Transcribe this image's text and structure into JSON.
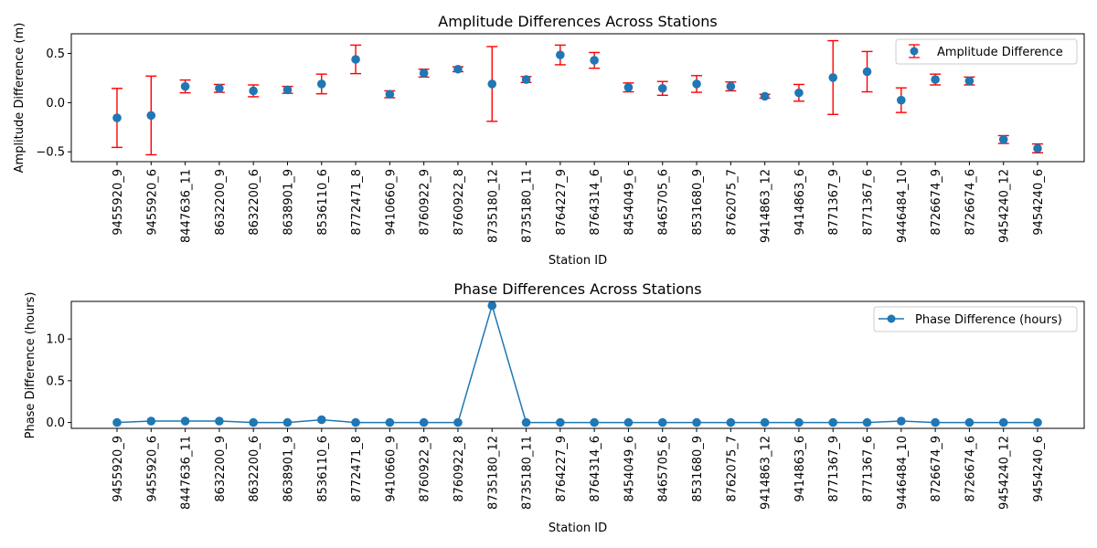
{
  "chart_data": [
    {
      "type": "scatter",
      "title": "Amplitude Differences Across Stations",
      "xlabel": "Station ID",
      "ylabel": "Amplitude Difference (m)",
      "ylim": [
        -0.6,
        0.7
      ],
      "yticks": [
        -0.5,
        0.0,
        0.5
      ],
      "ytick_labels": [
        "−0.5",
        "0.0",
        "0.5"
      ],
      "grid": false,
      "legend": {
        "position": "top-right",
        "label": "Amplitude Difference"
      },
      "categories": [
        "9455920_9",
        "9455920_6",
        "8447636_11",
        "8632200_9",
        "8632200_6",
        "8638901_9",
        "8536110_6",
        "8772471_8",
        "9410660_9",
        "8760922_9",
        "8760922_8",
        "8735180_12",
        "8735180_11",
        "8764227_9",
        "8764314_6",
        "8454049_6",
        "8465705_6",
        "8531680_9",
        "8762075_7",
        "9414863_12",
        "9414863_6",
        "8771367_9",
        "8771367_6",
        "9446484_10",
        "8726674_9",
        "8726674_6",
        "9454240_12",
        "9454240_6"
      ],
      "series": [
        {
          "name": "Amplitude Difference",
          "values": [
            -0.155,
            -0.13,
            0.165,
            0.145,
            0.12,
            0.13,
            0.19,
            0.44,
            0.085,
            0.3,
            0.34,
            0.19,
            0.235,
            0.485,
            0.43,
            0.155,
            0.145,
            0.19,
            0.165,
            0.065,
            0.1,
            0.255,
            0.315,
            0.025,
            0.235,
            0.22,
            -0.375,
            -0.465
          ],
          "error": [
            0.3,
            0.4,
            0.065,
            0.04,
            0.06,
            0.035,
            0.1,
            0.145,
            0.035,
            0.04,
            0.025,
            0.38,
            0.03,
            0.1,
            0.08,
            0.045,
            0.07,
            0.085,
            0.045,
            0.02,
            0.085,
            0.375,
            0.205,
            0.125,
            0.055,
            0.04,
            0.04,
            0.045
          ],
          "marker_color": "#1f77b4",
          "error_color": "#ff0000"
        }
      ]
    },
    {
      "type": "line",
      "title": "Phase Differences Across Stations",
      "xlabel": "Station ID",
      "ylabel": "Phase Difference (hours)",
      "ylim": [
        -0.07,
        1.45
      ],
      "yticks": [
        0.0,
        0.5,
        1.0
      ],
      "ytick_labels": [
        "0.0",
        "0.5",
        "1.0"
      ],
      "grid": false,
      "legend": {
        "position": "top-right",
        "label": "Phase Difference (hours)"
      },
      "categories": [
        "9455920_9",
        "9455920_6",
        "8447636_11",
        "8632200_9",
        "8632200_6",
        "8638901_9",
        "8536110_6",
        "8772471_8",
        "9410660_9",
        "8760922_9",
        "8760922_8",
        "8735180_12",
        "8735180_11",
        "8764227_9",
        "8764314_6",
        "8454049_6",
        "8465705_6",
        "8531680_9",
        "8762075_7",
        "9414863_12",
        "9414863_6",
        "8771367_9",
        "8771367_6",
        "9446484_10",
        "8726674_9",
        "8726674_6",
        "9454240_12",
        "9454240_6"
      ],
      "series": [
        {
          "name": "Phase Difference (hours)",
          "values": [
            0.0,
            0.017,
            0.017,
            0.017,
            0.0,
            0.0,
            0.033,
            0.0,
            0.0,
            0.0,
            0.0,
            1.4,
            0.0,
            0.0,
            0.0,
            0.0,
            0.0,
            0.0,
            0.0,
            0.0,
            0.0,
            0.0,
            0.0,
            0.017,
            0.0,
            0.0,
            0.0,
            0.0
          ],
          "color": "#1f77b4"
        }
      ]
    }
  ]
}
